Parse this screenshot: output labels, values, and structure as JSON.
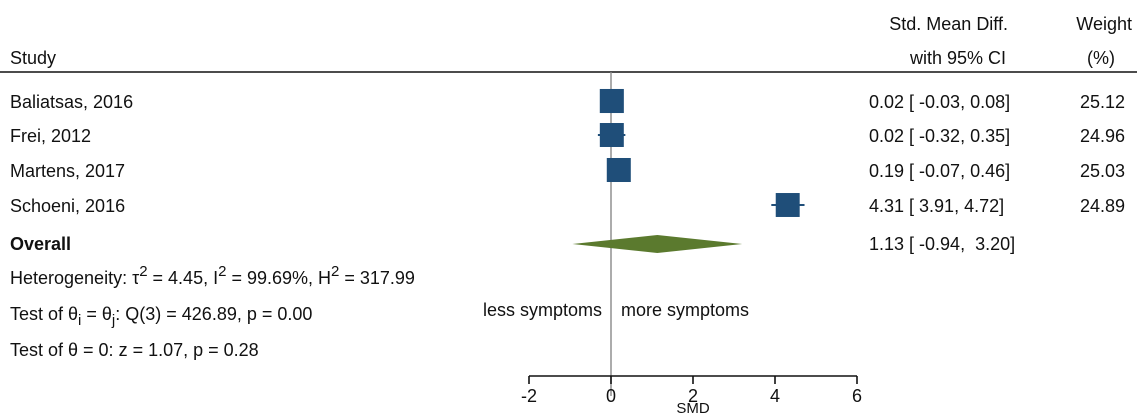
{
  "chart_data": {
    "type": "forest",
    "headers": {
      "study": "Study",
      "effect_line1": "Std. Mean Diff.",
      "effect_line2": "with 95% CI",
      "weight_line1": "Weight",
      "weight_line2": "(%)"
    },
    "studies": [
      {
        "label": "Baliatsas, 2016",
        "smd": 0.02,
        "ci": [
          -0.03,
          0.08
        ],
        "ci_text": "0.02 [ -0.03,  0.08]",
        "weight": 25.12,
        "weight_text": "25.12"
      },
      {
        "label": "Frei, 2012",
        "smd": 0.02,
        "ci": [
          -0.32,
          0.35
        ],
        "ci_text": "0.02 [ -0.32,  0.35]",
        "weight": 24.96,
        "weight_text": "24.96"
      },
      {
        "label": "Martens, 2017",
        "smd": 0.19,
        "ci": [
          -0.07,
          0.46
        ],
        "ci_text": "0.19 [ -0.07,  0.46]",
        "weight": 25.03,
        "weight_text": "25.03"
      },
      {
        "label": "Schoeni, 2016",
        "smd": 4.31,
        "ci": [
          3.91,
          4.72
        ],
        "ci_text": "4.31 [  3.91,  4.72]",
        "weight": 24.89,
        "weight_text": "24.89"
      }
    ],
    "overall": {
      "label": "Overall",
      "smd": 1.13,
      "ci": [
        -0.94,
        3.2
      ],
      "ci_text": "1.13 [ -0.94,  3.20]"
    },
    "heterogeneity": {
      "prefix": "Heterogeneity: τ",
      "tau_sup": "2",
      "tau_val": " = 4.45, I",
      "i_sup": "2",
      "i_val": " = 99.69%, H",
      "h_sup": "2",
      "h_val": " = 317.99"
    },
    "test_equal": {
      "prefix": "Test of θ",
      "sub1": "i",
      "mid": " = θ",
      "sub2": "j",
      "rest": ": Q(3) = 426.89, p = 0.00"
    },
    "test_zero": "Test of θ = 0: z = 1.07, p = 0.28",
    "direction_left": "less symptoms",
    "direction_right": "more symptoms",
    "xaxis": {
      "label": "SMD",
      "ticks": [
        -2,
        0,
        2,
        4,
        6
      ],
      "range": [
        -2,
        6
      ]
    },
    "colors": {
      "study_marker": "#1f4e79",
      "overall_diamond": "#5b7a2e",
      "line": "#111111",
      "ref_line": "#888888"
    }
  }
}
